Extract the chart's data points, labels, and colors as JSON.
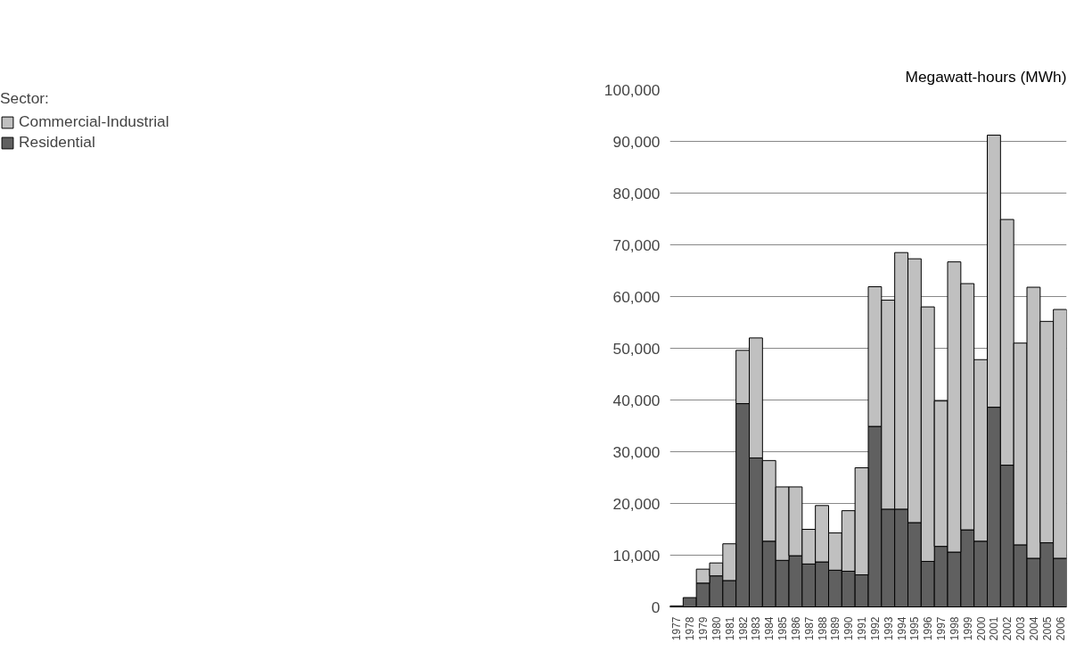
{
  "chart_data": {
    "type": "bar",
    "stacked": true,
    "ylabel": "Megawatt-hours (MWh)",
    "legend_title": "Sector:",
    "legend": "top left",
    "grid": "y",
    "categories": [
      "1977",
      "1978",
      "1979",
      "1980",
      "1981",
      "1982",
      "1983",
      "1984",
      "1985",
      "1986",
      "1987",
      "1988",
      "1989",
      "1990",
      "1991",
      "1992",
      "1993",
      "1994",
      "1995",
      "1996",
      "1997",
      "1998",
      "1999",
      "2000",
      "2001",
      "2002",
      "2003",
      "2004",
      "2005",
      "2006"
    ],
    "series": [
      {
        "name": "Residential",
        "color": "#606060",
        "values": [
          200,
          1800,
          4600,
          6000,
          5100,
          39300,
          28800,
          12700,
          9000,
          9900,
          8300,
          8700,
          7100,
          6900,
          6200,
          34900,
          18900,
          18900,
          16300,
          8800,
          11700,
          10600,
          14900,
          12700,
          38600,
          27400,
          12000,
          9400,
          12400,
          9400
        ]
      },
      {
        "name": "Commercial-Industrial",
        "color": "#c0c0c0",
        "values": [
          null,
          null,
          2700,
          2500,
          7100,
          10300,
          23200,
          15600,
          14200,
          13300,
          6700,
          10900,
          7200,
          11700,
          20700,
          27000,
          40400,
          49600,
          51000,
          49200,
          28100,
          56100,
          47600,
          35100,
          52600,
          47500,
          39000,
          52400,
          42800,
          48100
        ]
      }
    ],
    "ylim": [
      0,
      100000
    ],
    "yticks": [
      0,
      {
        "value": 10000,
        "label": "10,000"
      },
      {
        "value": 20000,
        "label": "20,000"
      },
      {
        "value": 30000,
        "label": "30,000"
      },
      {
        "value": 40000,
        "label": "40,000"
      },
      {
        "value": 50000,
        "label": "50,000"
      },
      {
        "value": 60000,
        "label": "60,000"
      },
      {
        "value": 70000,
        "label": "70,000"
      },
      {
        "value": 80000,
        "label": "80,000"
      },
      {
        "value": 90000,
        "label": "90,000"
      },
      {
        "value": 100000,
        "label": "100,000"
      }
    ]
  }
}
